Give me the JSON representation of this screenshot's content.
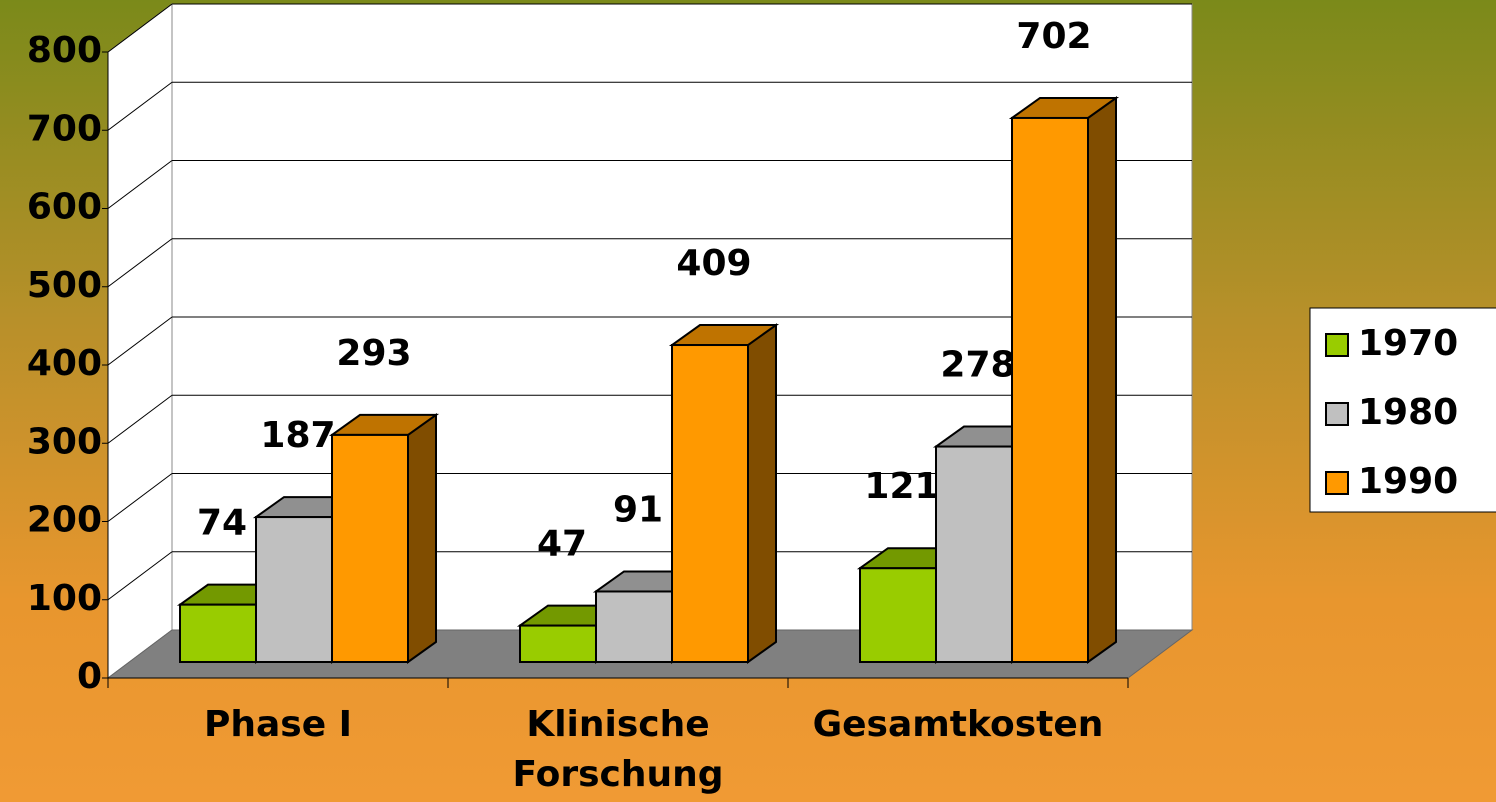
{
  "chart_data": {
    "type": "bar3d",
    "categories": [
      "Phase I",
      "Klinische Forschung",
      "Gesamtkosten"
    ],
    "series": [
      {
        "name": "1970",
        "color": "#99cc00",
        "values": [
          74,
          47,
          121
        ]
      },
      {
        "name": "1980",
        "color": "#c0c0c0",
        "values": [
          187,
          91,
          278
        ]
      },
      {
        "name": "1990",
        "color": "#ff9900",
        "values": [
          293,
          409,
          702
        ]
      }
    ],
    "ylim": [
      0,
      800
    ],
    "yticks": [
      0,
      100,
      200,
      300,
      400,
      500,
      600,
      700,
      800
    ],
    "grid": true,
    "legend": "right"
  }
}
